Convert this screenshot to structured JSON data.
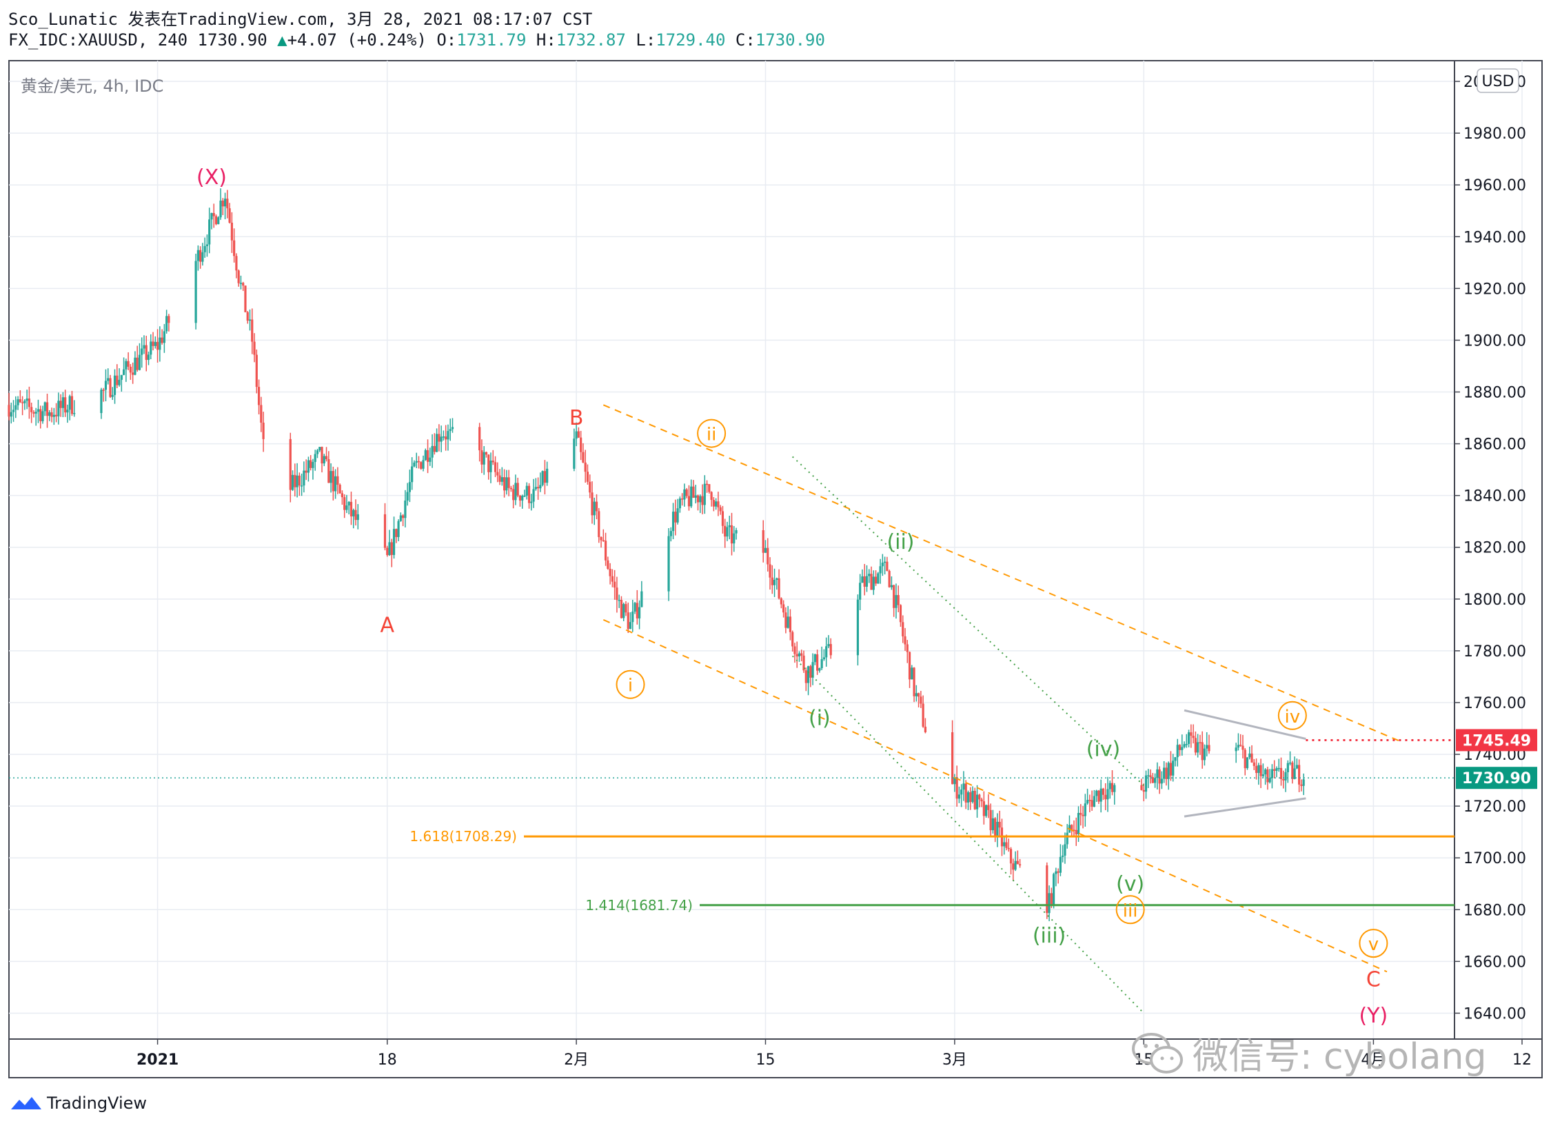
{
  "header": {
    "line1": "Sco_Lunatic 发表在TradingView.com, 3月 28, 2021 08:17:07 CST",
    "symbol": "FX_IDC:XAUUSD, 240",
    "price": "1730.90",
    "arrow": "▲",
    "change": "+4.07 (+0.24%)",
    "o_label": "O:",
    "o_value": "1731.79",
    "h_label": "H:",
    "h_value": "1732.87",
    "l_label": "L:",
    "l_value": "1729.40",
    "c_label": "C:",
    "c_value": "1730.90"
  },
  "legend_title": "黄金/美元, 4h, IDC",
  "currency_badge": "USD",
  "footer": {
    "brand": "TradingView",
    "logo_icon": "tradingview-logo-icon"
  },
  "watermark": {
    "text": "微信号: cybolang",
    "icon": "wechat-icon"
  },
  "colors": {
    "up": "#26a69a",
    "down": "#ef5350",
    "orange": "#ff9800",
    "green": "#43a047",
    "wave_pink": "#e91e63",
    "wave_red": "#f44336",
    "grey": "#b2b5be",
    "price_line": "#26a69a"
  },
  "chart_data": {
    "type": "candlestick",
    "y_axis": {
      "ylim": [
        1630,
        2008
      ],
      "ticks": [
        2000,
        1980,
        1960,
        1940,
        1920,
        1900,
        1880,
        1860,
        1840,
        1820,
        1800,
        1780,
        1760,
        1740,
        1720,
        1700,
        1680,
        1660,
        1640
      ],
      "tick_labels": [
        "2000.00",
        "1980.00",
        "1960.00",
        "1940.00",
        "1920.00",
        "1900.00",
        "1880.00",
        "1860.00",
        "1840.00",
        "1820.00",
        "1800.00",
        "1780.00",
        "1760.00",
        "1740.00",
        "1720.00",
        "1700.00",
        "1680.00",
        "1660.00",
        "1640.00"
      ]
    },
    "x_axis": {
      "xlim": [
        "2020-12-21",
        "2021-04-07"
      ],
      "ticks": [
        {
          "date": "2021-01-01",
          "label": "2021"
        },
        {
          "date": "2021-01-18",
          "label": "18"
        },
        {
          "date": "2021-02-01",
          "label": "2月"
        },
        {
          "date": "2021-02-15",
          "label": "15"
        },
        {
          "date": "2021-03-01",
          "label": "3月"
        },
        {
          "date": "2021-03-15",
          "label": "15"
        },
        {
          "date": "2021-04-01",
          "label": "4月"
        },
        {
          "date": "2021-04-12",
          "label": "12"
        }
      ]
    },
    "last_price": 1730.9,
    "marked_level": 1745.49,
    "price_tags": [
      "1745.49",
      "1730.90"
    ],
    "fib_levels": [
      {
        "label": "1.618(1708.29)",
        "value": 1708.29,
        "color": "orange"
      },
      {
        "label": "1.414(1681.74)",
        "value": 1681.74,
        "color": "green"
      }
    ],
    "path": [
      [
        "2020-12-21",
        1875
      ],
      [
        "2020-12-24",
        1872
      ],
      [
        "2020-12-28",
        1880
      ],
      [
        "2020-12-30",
        1890
      ],
      [
        "2021-01-01",
        1898
      ],
      [
        "2021-01-03",
        1920
      ],
      [
        "2021-01-05",
        1945
      ],
      [
        "2021-01-06",
        1957
      ],
      [
        "2021-01-07",
        1925
      ],
      [
        "2021-01-08",
        1900
      ],
      [
        "2021-01-09",
        1850
      ],
      [
        "2021-01-10",
        1838
      ],
      [
        "2021-01-13",
        1855
      ],
      [
        "2021-01-15",
        1835
      ],
      [
        "2021-01-18",
        1815
      ],
      [
        "2021-01-20",
        1850
      ],
      [
        "2021-01-22",
        1865
      ],
      [
        "2021-01-25",
        1855
      ],
      [
        "2021-01-27",
        1842
      ],
      [
        "2021-01-29",
        1840
      ],
      [
        "2021-01-31",
        1860
      ],
      [
        "2021-02-01",
        1862
      ],
      [
        "2021-02-02",
        1840
      ],
      [
        "2021-02-04",
        1800
      ],
      [
        "2021-02-05",
        1790
      ],
      [
        "2021-02-08",
        1830
      ],
      [
        "2021-02-09",
        1838
      ],
      [
        "2021-02-11",
        1842
      ],
      [
        "2021-02-12",
        1825
      ],
      [
        "2021-02-15",
        1818
      ],
      [
        "2021-02-17",
        1785
      ],
      [
        "2021-02-18",
        1772
      ],
      [
        "2021-02-20",
        1780
      ],
      [
        "2021-02-22",
        1805
      ],
      [
        "2021-02-24",
        1812
      ],
      [
        "2021-02-25",
        1790
      ],
      [
        "2021-02-26",
        1765
      ],
      [
        "2021-02-28",
        1730
      ],
      [
        "2021-03-02",
        1725
      ],
      [
        "2021-03-04",
        1712
      ],
      [
        "2021-03-05",
        1700
      ],
      [
        "2021-03-07",
        1688
      ],
      [
        "2021-03-08",
        1682
      ],
      [
        "2021-03-09",
        1705
      ],
      [
        "2021-03-11",
        1722
      ],
      [
        "2021-03-12",
        1727
      ],
      [
        "2021-03-14",
        1722
      ],
      [
        "2021-03-15",
        1728
      ],
      [
        "2021-03-17",
        1735
      ],
      [
        "2021-03-18",
        1745
      ],
      [
        "2021-03-20",
        1740
      ],
      [
        "2021-03-22",
        1742
      ],
      [
        "2021-03-24",
        1730
      ],
      [
        "2021-03-26",
        1733
      ],
      [
        "2021-03-28",
        1730.9
      ]
    ],
    "annotations": [
      {
        "text": "(X)",
        "date": "2021-01-05",
        "price": 1963,
        "color": "wave_pink",
        "style": "text"
      },
      {
        "text": "A",
        "date": "2021-01-18",
        "price": 1790,
        "color": "wave_red",
        "style": "text"
      },
      {
        "text": "B",
        "date": "2021-02-01",
        "price": 1870,
        "color": "wave_red",
        "style": "text"
      },
      {
        "text": "ii",
        "date": "2021-02-11",
        "price": 1864,
        "color": "orange",
        "style": "circle"
      },
      {
        "text": "i",
        "date": "2021-02-05",
        "price": 1767,
        "color": "orange",
        "style": "circle"
      },
      {
        "text": "(ii)",
        "date": "2021-02-25",
        "price": 1822,
        "color": "green",
        "style": "text"
      },
      {
        "text": "(i)",
        "date": "2021-02-19",
        "price": 1754,
        "color": "green",
        "style": "text"
      },
      {
        "text": "(iv)",
        "date": "2021-03-12",
        "price": 1742,
        "color": "green",
        "style": "text"
      },
      {
        "text": "(v)",
        "date": "2021-03-14",
        "price": 1690,
        "color": "green",
        "style": "text"
      },
      {
        "text": "iii",
        "date": "2021-03-14",
        "price": 1680,
        "color": "orange",
        "style": "circle"
      },
      {
        "text": "(iii)",
        "date": "2021-03-08",
        "price": 1670,
        "color": "green",
        "style": "text"
      },
      {
        "text": "iv",
        "date": "2021-03-26",
        "price": 1755,
        "color": "orange",
        "style": "circle"
      },
      {
        "text": "v",
        "date": "2021-04-01",
        "price": 1667,
        "color": "orange",
        "style": "circle"
      },
      {
        "text": "C",
        "date": "2021-04-01",
        "price": 1653,
        "color": "wave_red",
        "style": "text"
      },
      {
        "text": "(Y)",
        "date": "2021-04-01",
        "price": 1639,
        "color": "wave_pink",
        "style": "text"
      }
    ],
    "trend_lines": [
      {
        "name": "orange-channel-upper",
        "from": [
          "2021-02-03",
          1875
        ],
        "to": [
          "2021-04-03",
          1745
        ],
        "color": "orange",
        "dash": "long"
      },
      {
        "name": "orange-channel-lower",
        "from": [
          "2021-02-03",
          1792
        ],
        "to": [
          "2021-04-02",
          1656
        ],
        "color": "orange",
        "dash": "long"
      },
      {
        "name": "green-channel-upper",
        "from": [
          "2021-02-17",
          1855
        ],
        "to": [
          "2021-03-15",
          1728
        ],
        "color": "green",
        "dash": "dot"
      },
      {
        "name": "green-channel-lower",
        "from": [
          "2021-02-17",
          1778
        ],
        "to": [
          "2021-03-15",
          1640
        ],
        "color": "green",
        "dash": "dot"
      },
      {
        "name": "triangle-upper",
        "from": [
          "2021-03-18",
          1757
        ],
        "to": [
          "2021-03-27",
          1746
        ],
        "color": "grey",
        "dash": "solid"
      },
      {
        "name": "triangle-lower",
        "from": [
          "2021-03-18",
          1716
        ],
        "to": [
          "2021-03-27",
          1723
        ],
        "color": "grey",
        "dash": "solid"
      }
    ]
  }
}
